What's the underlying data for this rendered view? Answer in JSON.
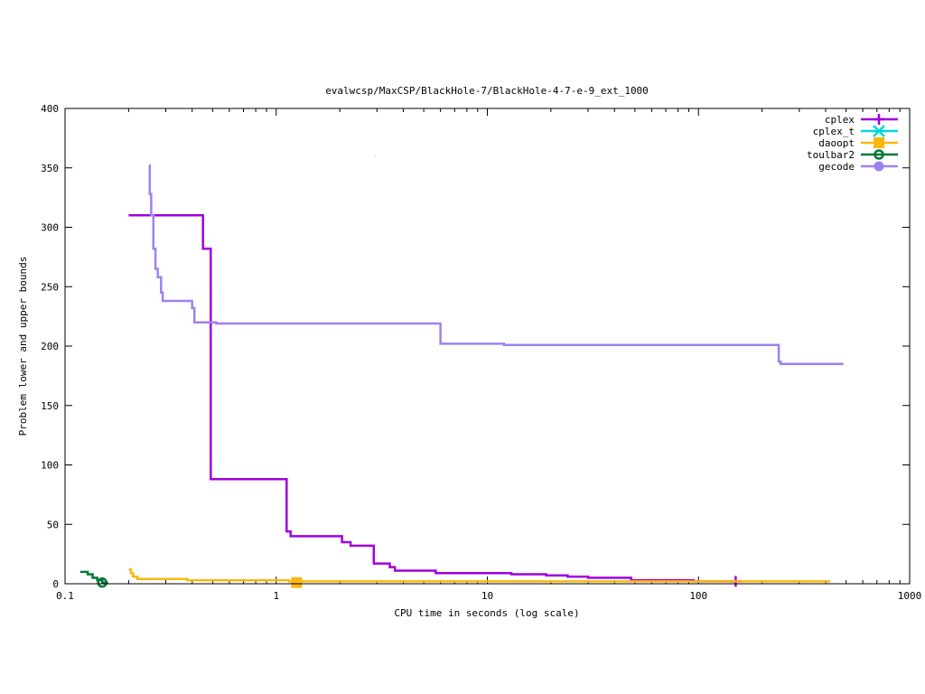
{
  "chart_data": {
    "type": "line",
    "title": "evalwcsp/MaxCSP/BlackHole-7/BlackHole-4-7-e-9_ext_1000",
    "xlabel": "CPU time in seconds (log scale)",
    "ylabel": "Problem lower and upper bounds",
    "xscale": "log",
    "xlim": [
      0.1,
      1000
    ],
    "ylim": [
      0,
      400
    ],
    "x_ticks": [
      {
        "value": 0.1,
        "label": "0.1"
      },
      {
        "value": 1,
        "label": "1"
      },
      {
        "value": 10,
        "label": "10"
      },
      {
        "value": 100,
        "label": "100"
      },
      {
        "value": 1000,
        "label": "1000"
      }
    ],
    "y_ticks": [
      {
        "value": 0,
        "label": "0"
      },
      {
        "value": 50,
        "label": "50"
      },
      {
        "value": 100,
        "label": "100"
      },
      {
        "value": 150,
        "label": "150"
      },
      {
        "value": 200,
        "label": "200"
      },
      {
        "value": 250,
        "label": "250"
      },
      {
        "value": 300,
        "label": "300"
      },
      {
        "value": 350,
        "label": "350"
      },
      {
        "value": 400,
        "label": "400"
      }
    ],
    "grid": false,
    "legend_position": "top-right",
    "series": [
      {
        "name": "cplex",
        "color": "#a000e0",
        "marker": "plus",
        "step": true,
        "points": [
          [
            0.2,
            310
          ],
          [
            0.45,
            310
          ],
          [
            0.45,
            282
          ],
          [
            0.49,
            282
          ],
          [
            0.49,
            88
          ],
          [
            1.12,
            88
          ],
          [
            1.12,
            44
          ],
          [
            1.17,
            44
          ],
          [
            1.17,
            40
          ],
          [
            2.05,
            40
          ],
          [
            2.05,
            35
          ],
          [
            2.25,
            35
          ],
          [
            2.25,
            32
          ],
          [
            2.9,
            32
          ],
          [
            2.9,
            17
          ],
          [
            3.45,
            17
          ],
          [
            3.45,
            14
          ],
          [
            3.65,
            14
          ],
          [
            3.65,
            11
          ],
          [
            5.7,
            11
          ],
          [
            5.7,
            9
          ],
          [
            13,
            9
          ],
          [
            13,
            8
          ],
          [
            19,
            8
          ],
          [
            19,
            7
          ],
          [
            24,
            7
          ],
          [
            24,
            6
          ],
          [
            30,
            6
          ],
          [
            30,
            5
          ],
          [
            48,
            5
          ],
          [
            48,
            3
          ],
          [
            95,
            3
          ],
          [
            95,
            2
          ],
          [
            160,
            2
          ]
        ],
        "markers": [
          [
            150,
            2
          ]
        ]
      },
      {
        "name": "cplex_t",
        "color": "#00d8d8",
        "marker": "x",
        "step": false,
        "points": [
          [
            2.95,
            360
          ],
          [
            2.96,
            360
          ]
        ],
        "markers": []
      },
      {
        "name": "daoopt",
        "color": "#f8b810",
        "marker": "square",
        "step": true,
        "points": [
          [
            0.2,
            12
          ],
          [
            0.205,
            12
          ],
          [
            0.205,
            9
          ],
          [
            0.21,
            9
          ],
          [
            0.21,
            6
          ],
          [
            0.22,
            6
          ],
          [
            0.22,
            4
          ],
          [
            0.38,
            4
          ],
          [
            0.38,
            3
          ],
          [
            1.15,
            3
          ],
          [
            1.15,
            2
          ],
          [
            420,
            2
          ]
        ],
        "markers": [
          [
            1.25,
            1
          ]
        ]
      },
      {
        "name": "toulbar2",
        "color": "#007838",
        "marker": "circle-open",
        "step": true,
        "points": [
          [
            0.118,
            10
          ],
          [
            0.128,
            10
          ],
          [
            0.128,
            8
          ],
          [
            0.135,
            8
          ],
          [
            0.135,
            5
          ],
          [
            0.142,
            5
          ],
          [
            0.142,
            3
          ],
          [
            0.15,
            3
          ],
          [
            0.15,
            1
          ],
          [
            0.16,
            1
          ]
        ],
        "markers": [
          [
            0.15,
            1
          ]
        ]
      },
      {
        "name": "gecode",
        "color": "#a080f0",
        "marker": "circle",
        "step": true,
        "points": [
          [
            0.25,
            352
          ],
          [
            0.252,
            352
          ],
          [
            0.252,
            328
          ],
          [
            0.256,
            328
          ],
          [
            0.256,
            310
          ],
          [
            0.262,
            310
          ],
          [
            0.262,
            282
          ],
          [
            0.268,
            282
          ],
          [
            0.268,
            265
          ],
          [
            0.275,
            265
          ],
          [
            0.275,
            258
          ],
          [
            0.285,
            258
          ],
          [
            0.285,
            245
          ],
          [
            0.29,
            245
          ],
          [
            0.29,
            238
          ],
          [
            0.4,
            238
          ],
          [
            0.4,
            232
          ],
          [
            0.41,
            232
          ],
          [
            0.41,
            220
          ],
          [
            0.52,
            220
          ],
          [
            0.52,
            219
          ],
          [
            6.0,
            219
          ],
          [
            6.0,
            202
          ],
          [
            12,
            202
          ],
          [
            12,
            201
          ],
          [
            240,
            201
          ],
          [
            240,
            187
          ],
          [
            245,
            187
          ],
          [
            245,
            185
          ],
          [
            480,
            185
          ],
          [
            480,
            184
          ]
        ],
        "markers": []
      }
    ]
  }
}
